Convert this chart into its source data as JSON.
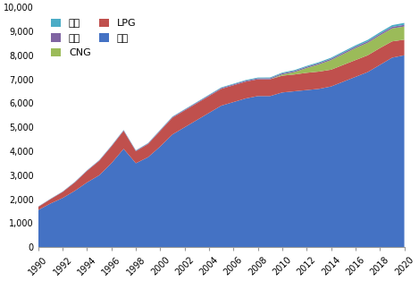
{
  "years": [
    1990,
    1991,
    1992,
    1993,
    1994,
    1995,
    1996,
    1997,
    1998,
    1999,
    2000,
    2001,
    2002,
    2003,
    2004,
    2005,
    2006,
    2007,
    2008,
    2009,
    2010,
    2011,
    2012,
    2013,
    2014,
    2015,
    2016,
    2017,
    2018,
    2019,
    2020
  ],
  "유류": [
    1550,
    1820,
    2050,
    2350,
    2700,
    3000,
    3500,
    4100,
    3500,
    3750,
    4200,
    4700,
    5000,
    5300,
    5600,
    5900,
    6050,
    6200,
    6300,
    6300,
    6450,
    6500,
    6550,
    6600,
    6700,
    6900,
    7100,
    7300,
    7600,
    7900,
    8000
  ],
  "LPG": [
    130,
    180,
    250,
    350,
    480,
    600,
    700,
    750,
    500,
    550,
    650,
    700,
    700,
    700,
    700,
    700,
    700,
    700,
    700,
    700,
    700,
    700,
    720,
    720,
    700,
    700,
    700,
    700,
    700,
    680,
    650
  ],
  "CNG": [
    0,
    0,
    0,
    0,
    0,
    0,
    0,
    0,
    0,
    0,
    0,
    0,
    0,
    0,
    0,
    0,
    0,
    0,
    0,
    0,
    50,
    100,
    200,
    300,
    400,
    450,
    500,
    520,
    530,
    540,
    550
  ],
  "전력": [
    10,
    12,
    14,
    16,
    18,
    20,
    22,
    24,
    25,
    26,
    28,
    30,
    32,
    33,
    35,
    37,
    38,
    40,
    42,
    44,
    46,
    48,
    50,
    52,
    55,
    58,
    60,
    62,
    64,
    66,
    70
  ],
  "기타": [
    5,
    6,
    7,
    8,
    9,
    10,
    12,
    13,
    14,
    15,
    16,
    17,
    18,
    20,
    22,
    24,
    26,
    28,
    30,
    32,
    34,
    36,
    38,
    40,
    45,
    50,
    55,
    60,
    65,
    70,
    80
  ],
  "colors": {
    "유류": "#4472C4",
    "LPG": "#C0504D",
    "CNG": "#9BBB59",
    "전력": "#8064A2",
    "기타": "#4BACC6"
  },
  "ylim": [
    0,
    10000
  ],
  "yticks": [
    0,
    1000,
    2000,
    3000,
    4000,
    5000,
    6000,
    7000,
    8000,
    9000,
    10000
  ],
  "xticks": [
    1990,
    1992,
    1994,
    1996,
    1998,
    2000,
    2002,
    2004,
    2006,
    2008,
    2010,
    2012,
    2014,
    2016,
    2018,
    2020
  ],
  "legend_order": [
    "기타",
    "전력",
    "CNG",
    "LPG",
    "유류"
  ],
  "legend_ncol": 2
}
